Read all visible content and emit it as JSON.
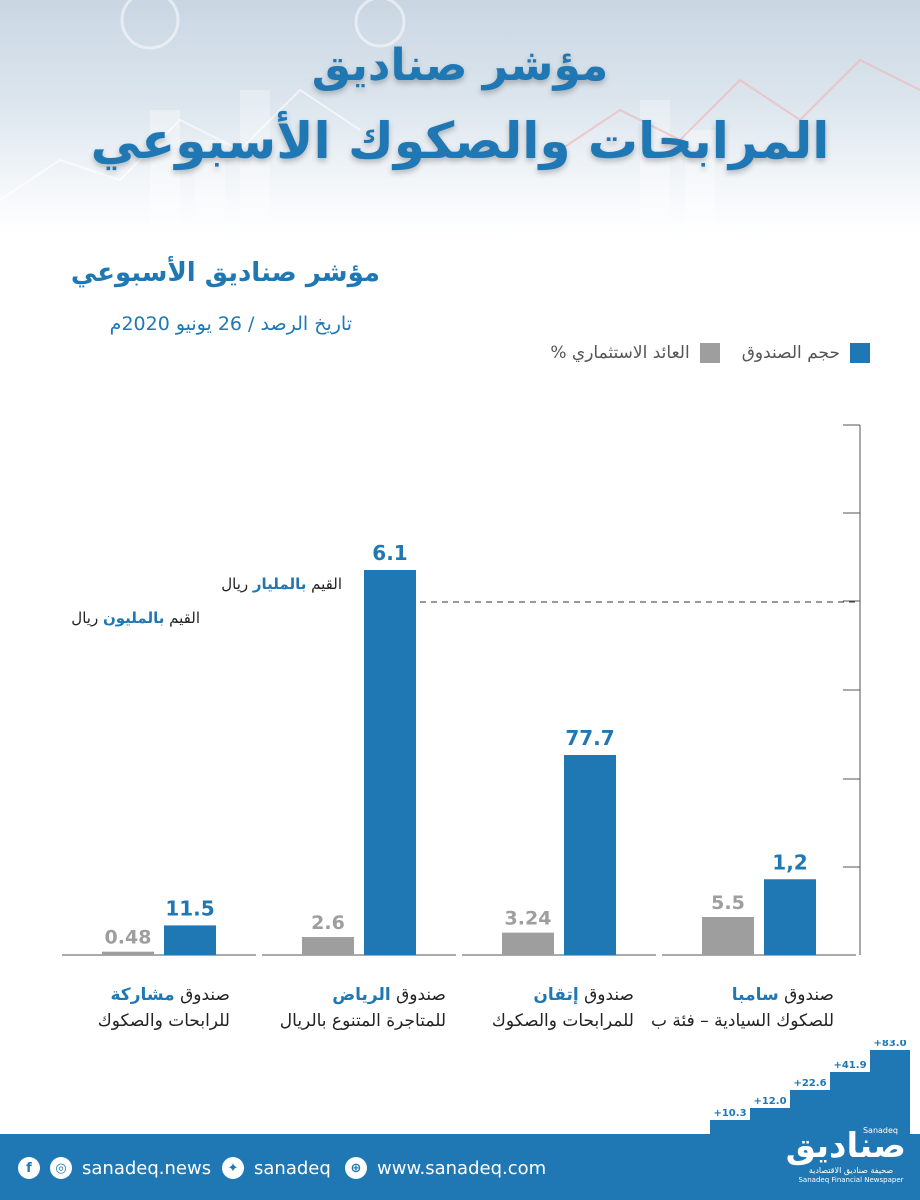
{
  "header": {
    "title_line1": "مؤشر صناديق",
    "title_line2": "المرابحات والصكوك الأسبوعي"
  },
  "subtitle": "مؤشر صناديق الأسبوعي",
  "date_label": "تاريخ الرصد / 26 يونيو 2020م",
  "legend": {
    "size_label": "حجم الصندوق",
    "return_label": "العائد الاستثماري %"
  },
  "unit_notes": {
    "billion": {
      "prefix": "القيم",
      "highlight": "بالمليار",
      "suffix": "ريال"
    },
    "million": {
      "prefix": "القيم",
      "highlight": "بالمليون",
      "suffix": "ريال"
    }
  },
  "colors": {
    "size": "#1f78b4",
    "return": "#9e9e9e",
    "text_blue": "#1f78b4",
    "footer": "#1f78b4"
  },
  "chart_data": {
    "type": "bar",
    "categories": [
      "صندوق مشاركة للرابحات والصكوك",
      "صندوق الرياض للمتاجرة المتنوع بالريال",
      "صندوق إتقان للمرابحات والصكوك",
      "صندوق سامبا للصكوك السيادية – فئة ب"
    ],
    "series": [
      {
        "name": "العائد الاستثماري %",
        "values": [
          0.48,
          2.6,
          3.24,
          5.5
        ],
        "labels": [
          "0.48",
          "2.6",
          "3.24",
          "5.5"
        ]
      },
      {
        "name": "حجم الصندوق",
        "values": [
          11.5,
          6.1,
          77.7,
          1.2
        ],
        "labels": [
          "11.5",
          "6.1",
          "77.7",
          "1,2"
        ],
        "units": [
          "million SAR",
          "billion SAR",
          "million SAR",
          "billion SAR"
        ]
      }
    ],
    "title": "مؤشر صناديق الأسبوعي",
    "xlabel": "",
    "ylabel": "",
    "grid": false,
    "legend_position": "top-right"
  },
  "categories": [
    {
      "prefix": "صندوق ",
      "highlight": "مشاركة",
      "line2": "للرابحات والصكوك"
    },
    {
      "prefix": "صندوق ",
      "highlight": "الرياض",
      "line2": "للمتاجرة المتنوع بالريال"
    },
    {
      "prefix": "صندوق ",
      "highlight": "إتقان",
      "line2": "للمرابحات والصكوك"
    },
    {
      "prefix": "صندوق ",
      "highlight": "سامبا",
      "line2": "للصكوك السيادية – فئة ب"
    }
  ],
  "steps": [
    "+10.3",
    "+12.0",
    "+22.6",
    "+41.9",
    "+83.0"
  ],
  "footer": {
    "news_handle": "sanadeq.news",
    "twitter_handle": "sanadeq",
    "website": "www.sanadeq.com",
    "brand_ar": "صناديق",
    "brand_en": "Sanadeq",
    "brand_tagline_ar": "صحيفة صناديق الاقتصادية",
    "brand_tagline_en": "Sanadeq Financial Newspaper"
  }
}
